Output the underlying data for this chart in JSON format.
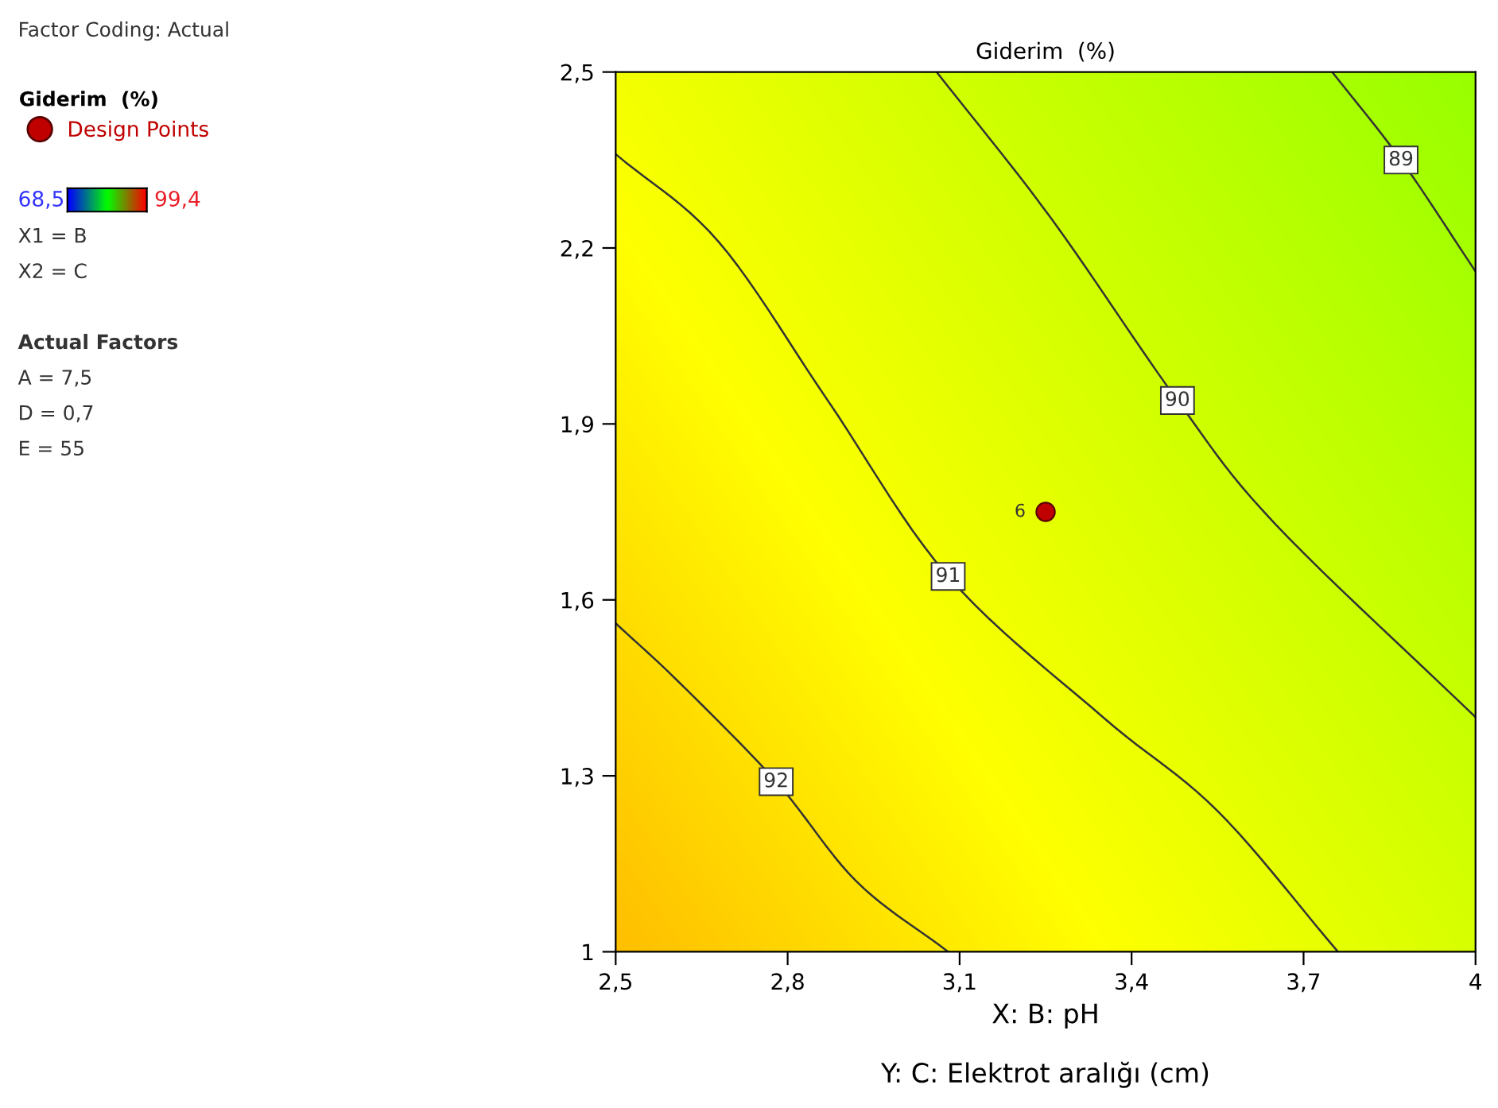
{
  "chart_data": {
    "type": "line",
    "title": "Giderim  (%)",
    "xlabel": "X: B: pH",
    "legend_title": "Giderim  (%)",
    "xlim": [
      2.5,
      4
    ],
    "ylim": [
      1,
      2.5
    ],
    "grid": false,
    "legend": "top left",
    "line_style": "solid",
    "marker": "none",
    "xticks": [
      {
        "value": 2.5,
        "label": "2,5"
      },
      {
        "value": 2.8,
        "label": "2,8"
      },
      {
        "value": 3.1,
        "label": "3,1"
      },
      {
        "value": 3.4,
        "label": "3,4"
      },
      {
        "value": 3.7,
        "label": "3,7"
      },
      {
        "value": 4,
        "label": "4"
      }
    ],
    "yticks": [
      {
        "value": 1,
        "label": "1"
      },
      {
        "value": 1.3,
        "label": "1,3"
      },
      {
        "value": 1.6,
        "label": "1,6"
      },
      {
        "value": 1.9,
        "label": "1,9"
      },
      {
        "value": 2.2,
        "label": "2,2"
      },
      {
        "value": 2.5,
        "label": "2,5"
      }
    ],
    "series": [
      {
        "color": "#333333",
        "x": [
          2.5,
          2.61,
          2.78,
          2.92,
          3.08
        ],
        "values": [
          1.56,
          1.46,
          1.29,
          1.12,
          1.0
        ]
      },
      {
        "color": "#333333",
        "x": [
          2.5,
          2.68,
          2.87,
          3.08,
          3.35,
          3.55,
          3.76
        ],
        "values": [
          2.36,
          2.21,
          1.94,
          1.64,
          1.4,
          1.24,
          1.0
        ]
      },
      {
        "color": "#333333",
        "x": [
          3.06,
          3.26,
          3.48,
          3.65,
          4.0
        ],
        "values": [
          2.5,
          2.25,
          1.94,
          1.73,
          1.4
        ]
      },
      {
        "color": "#333333",
        "x": [
          3.75,
          3.87,
          4.0
        ],
        "values": [
          2.5,
          2.35,
          2.16
        ]
      },
      {
        "type": "scatter",
        "name": "Design Points",
        "color": "#c00000",
        "marker": "circle",
        "x": [
          3.25
        ],
        "values": [
          1.75
        ]
      }
    ],
    "annotations": [
      {
        "text": "92",
        "x": 2.78,
        "y": 1.29
      },
      {
        "text": "91",
        "x": 3.08,
        "y": 1.64
      },
      {
        "text": "90",
        "x": 3.48,
        "y": 1.94
      },
      {
        "text": "89",
        "x": 3.87,
        "y": 2.35
      },
      {
        "text": "6",
        "x": 3.25,
        "y": 1.75
      },
      "Factor Coding: Actual",
      "68,5",
      "99,4",
      "X1 = B",
      "X2 = C",
      "Actual Factors",
      "A = 7,5",
      "D = 0,7",
      "E = 55",
      "Y: C: Elektrot aralığı (cm)"
    ]
  }
}
